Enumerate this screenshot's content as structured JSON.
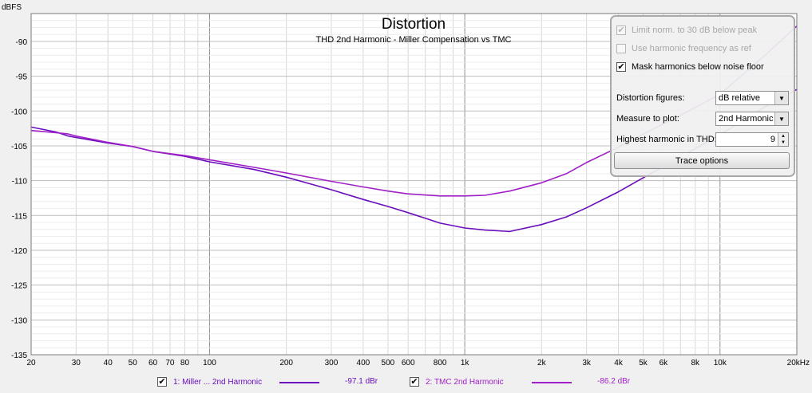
{
  "chart_data": {
    "type": "line",
    "title": "Distortion",
    "subtitle": "THD 2nd Harmonic - Miller Compensation vs TMC",
    "ylabel": "dBFS",
    "xlabel": "",
    "xunit": "Hz",
    "xscale": "log",
    "xlim": [
      20,
      20000
    ],
    "ylim": [
      -135,
      -86
    ],
    "grid": true,
    "legend": "bottom",
    "x_ticks": [
      {
        "v": 20,
        "label": "20"
      },
      {
        "v": 30,
        "label": "30"
      },
      {
        "v": 40,
        "label": "40"
      },
      {
        "v": 50,
        "label": "50"
      },
      {
        "v": 60,
        "label": "60"
      },
      {
        "v": 70,
        "label": "70"
      },
      {
        "v": 80,
        "label": "80"
      },
      {
        "v": 100,
        "label": "100"
      },
      {
        "v": 200,
        "label": "200"
      },
      {
        "v": 300,
        "label": "300"
      },
      {
        "v": 400,
        "label": "400"
      },
      {
        "v": 500,
        "label": "500"
      },
      {
        "v": 600,
        "label": "600"
      },
      {
        "v": 800,
        "label": "800"
      },
      {
        "v": 1000,
        "label": "1k"
      },
      {
        "v": 2000,
        "label": "2k"
      },
      {
        "v": 3000,
        "label": "3k"
      },
      {
        "v": 4000,
        "label": "4k"
      },
      {
        "v": 5000,
        "label": "5k"
      },
      {
        "v": 6000,
        "label": "6k"
      },
      {
        "v": 8000,
        "label": "8k"
      },
      {
        "v": 10000,
        "label": "10k"
      },
      {
        "v": 20000,
        "label": "20kHz"
      }
    ],
    "y_ticks": [
      -90,
      -95,
      -100,
      -105,
      -110,
      -115,
      -120,
      -125,
      -130,
      -135
    ],
    "series": [
      {
        "name": "1: Miller ... 2nd Harmonic",
        "color": "#6a0dbd",
        "value_label": "-97.1 dBr",
        "points": [
          [
            20,
            -102.3
          ],
          [
            25,
            -103.0
          ],
          [
            28,
            -103.6
          ],
          [
            30,
            -103.8
          ],
          [
            40,
            -104.6
          ],
          [
            50,
            -105.1
          ],
          [
            60,
            -105.8
          ],
          [
            80,
            -106.5
          ],
          [
            100,
            -107.3
          ],
          [
            150,
            -108.4
          ],
          [
            200,
            -109.5
          ],
          [
            300,
            -111.3
          ],
          [
            400,
            -112.7
          ],
          [
            500,
            -113.7
          ],
          [
            600,
            -114.6
          ],
          [
            700,
            -115.4
          ],
          [
            800,
            -116.1
          ],
          [
            1000,
            -116.8
          ],
          [
            1200,
            -117.1
          ],
          [
            1500,
            -117.3
          ],
          [
            2000,
            -116.3
          ],
          [
            2500,
            -115.2
          ],
          [
            3000,
            -113.9
          ],
          [
            4000,
            -111.6
          ],
          [
            5000,
            -109.6
          ],
          [
            6000,
            -108.0
          ],
          [
            8000,
            -105.4
          ],
          [
            10000,
            -103.4
          ],
          [
            15000,
            -99.4
          ],
          [
            20000,
            -96.9
          ]
        ]
      },
      {
        "name": "2: TMC 2nd Harmonic",
        "color": "#a020c8",
        "value_label": "-86.2 dBr",
        "points": [
          [
            20,
            -102.8
          ],
          [
            25,
            -103.1
          ],
          [
            28,
            -103.3
          ],
          [
            30,
            -103.6
          ],
          [
            40,
            -104.5
          ],
          [
            50,
            -105.1
          ],
          [
            60,
            -105.8
          ],
          [
            80,
            -106.4
          ],
          [
            100,
            -107.0
          ],
          [
            150,
            -108.1
          ],
          [
            200,
            -108.9
          ],
          [
            300,
            -110.1
          ],
          [
            400,
            -110.9
          ],
          [
            500,
            -111.5
          ],
          [
            600,
            -111.9
          ],
          [
            800,
            -112.2
          ],
          [
            1000,
            -112.2
          ],
          [
            1200,
            -112.1
          ],
          [
            1500,
            -111.5
          ],
          [
            2000,
            -110.3
          ],
          [
            2500,
            -109.0
          ],
          [
            3000,
            -107.4
          ],
          [
            4000,
            -105.2
          ],
          [
            5000,
            -103.3
          ],
          [
            7000,
            -100.6
          ],
          [
            10000,
            -97.6
          ],
          [
            15000,
            -92.0
          ],
          [
            20000,
            -87.8
          ]
        ]
      }
    ]
  },
  "options": {
    "limit_norm": {
      "label": "Limit norm. to 30 dB below peak",
      "checked": true,
      "enabled": false
    },
    "use_harmonic_freq": {
      "label": "Use harmonic frequency as ref",
      "checked": false,
      "enabled": false
    },
    "mask_harmonics": {
      "label": "Mask harmonics below noise floor",
      "checked": true,
      "enabled": true
    },
    "distortion_figures": {
      "label": "Distortion figures:",
      "value": "dB relative"
    },
    "measure_to_plot": {
      "label": "Measure to plot:",
      "value": "2nd Harmonic"
    },
    "highest_harmonic": {
      "label": "Highest harmonic in THD:",
      "value": "9"
    },
    "trace_options": {
      "label": "Trace options"
    }
  },
  "theme": {
    "plot_bg": "#ffffff",
    "grid_minor": "#d8d8d8",
    "grid_major": "#909090",
    "panel_border": "#a9a9a9"
  }
}
